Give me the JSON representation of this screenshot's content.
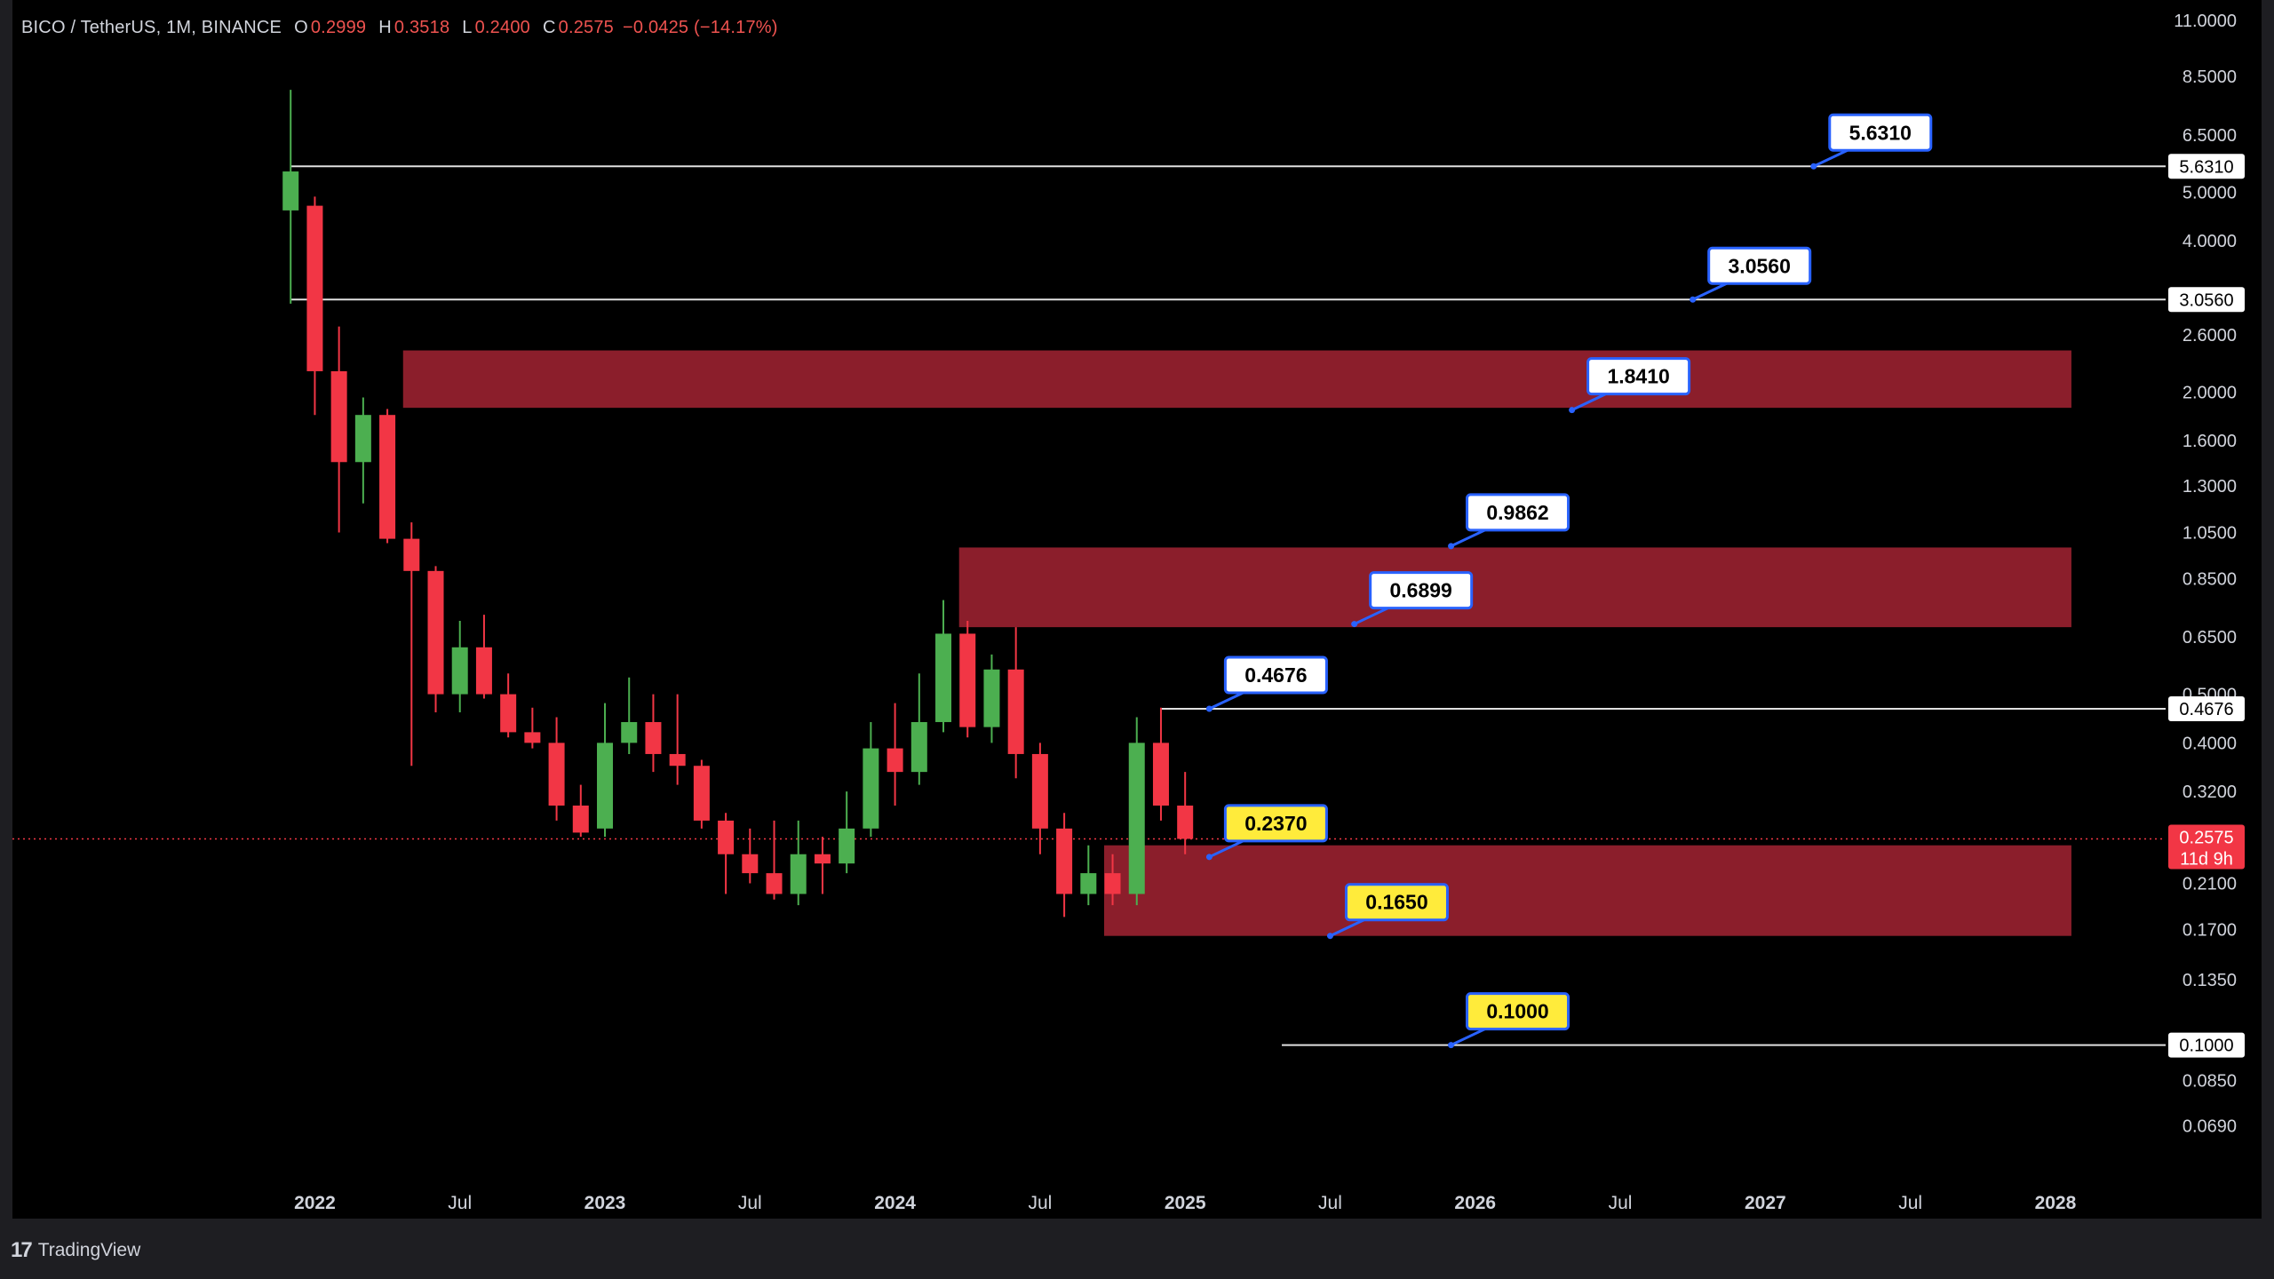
{
  "header": {
    "title": "BICO / TetherUS, 1M, BINANCE",
    "open_key": "O",
    "open": "0.2999",
    "high_key": "H",
    "high": "0.3518",
    "low_key": "L",
    "low": "0.2400",
    "close_key": "C",
    "close": "0.2575",
    "change": "−0.0425 (−14.17%)"
  },
  "footer": {
    "logo_glyph": "17",
    "brand": "TradingView"
  },
  "colors": {
    "up": "#4caf50",
    "down": "#f23645",
    "zone": "#8b1e2b",
    "axis_text": "#d1d4dc",
    "label_yellow": "#ffeb3b",
    "pointer": "#2962ff",
    "price_tag": "#f23645"
  },
  "chart_data": {
    "type": "candlestick",
    "symbol": "BICO / TetherUS",
    "interval": "1M",
    "exchange": "BINANCE",
    "y_scale": "log",
    "ylim": [
      0.06,
      11.5
    ],
    "xlim": [
      "2021-11",
      "2028-06"
    ],
    "y_ticks": [
      "11.0000",
      "8.5000",
      "6.5000",
      "5.0000",
      "4.0000",
      "2.6000",
      "2.0000",
      "1.6000",
      "1.3000",
      "1.0500",
      "0.8500",
      "0.6500",
      "0.5000",
      "0.4000",
      "0.3200",
      "0.2100",
      "0.1700",
      "0.1350",
      "0.0850",
      "0.0690"
    ],
    "x_ticks": [
      {
        "date": "2022-01",
        "label": "2022",
        "major": true
      },
      {
        "date": "2022-07",
        "label": "Jul",
        "major": false
      },
      {
        "date": "2023-01",
        "label": "2023",
        "major": true
      },
      {
        "date": "2023-07",
        "label": "Jul",
        "major": false
      },
      {
        "date": "2024-01",
        "label": "2024",
        "major": true
      },
      {
        "date": "2024-07",
        "label": "Jul",
        "major": false
      },
      {
        "date": "2025-01",
        "label": "2025",
        "major": true
      },
      {
        "date": "2025-07",
        "label": "Jul",
        "major": false
      },
      {
        "date": "2026-01",
        "label": "2026",
        "major": true
      },
      {
        "date": "2026-07",
        "label": "Jul",
        "major": false
      },
      {
        "date": "2027-01",
        "label": "2027",
        "major": true
      },
      {
        "date": "2027-07",
        "label": "Jul",
        "major": false
      },
      {
        "date": "2028-01",
        "label": "2028",
        "major": true
      }
    ],
    "candles": [
      {
        "t": "2021-12",
        "o": 4.6,
        "h": 8.0,
        "l": 3.0,
        "c": 5.5
      },
      {
        "t": "2022-01",
        "o": 4.7,
        "h": 4.9,
        "l": 1.8,
        "c": 2.2
      },
      {
        "t": "2022-02",
        "o": 2.2,
        "h": 2.7,
        "l": 1.05,
        "c": 1.45
      },
      {
        "t": "2022-03",
        "o": 1.45,
        "h": 1.95,
        "l": 1.2,
        "c": 1.8
      },
      {
        "t": "2022-04",
        "o": 1.8,
        "h": 1.85,
        "l": 1.0,
        "c": 1.02
      },
      {
        "t": "2022-05",
        "o": 1.02,
        "h": 1.1,
        "l": 0.36,
        "c": 0.88
      },
      {
        "t": "2022-06",
        "o": 0.88,
        "h": 0.9,
        "l": 0.46,
        "c": 0.5
      },
      {
        "t": "2022-07",
        "o": 0.5,
        "h": 0.7,
        "l": 0.46,
        "c": 0.62
      },
      {
        "t": "2022-08",
        "o": 0.62,
        "h": 0.72,
        "l": 0.49,
        "c": 0.5
      },
      {
        "t": "2022-09",
        "o": 0.5,
        "h": 0.55,
        "l": 0.41,
        "c": 0.42
      },
      {
        "t": "2022-10",
        "o": 0.42,
        "h": 0.47,
        "l": 0.39,
        "c": 0.4
      },
      {
        "t": "2022-11",
        "o": 0.4,
        "h": 0.45,
        "l": 0.28,
        "c": 0.3
      },
      {
        "t": "2022-12",
        "o": 0.3,
        "h": 0.33,
        "l": 0.26,
        "c": 0.265
      },
      {
        "t": "2023-01",
        "o": 0.27,
        "h": 0.48,
        "l": 0.26,
        "c": 0.4
      },
      {
        "t": "2023-02",
        "o": 0.4,
        "h": 0.54,
        "l": 0.38,
        "c": 0.44
      },
      {
        "t": "2023-03",
        "o": 0.44,
        "h": 0.5,
        "l": 0.35,
        "c": 0.38
      },
      {
        "t": "2023-04",
        "o": 0.38,
        "h": 0.5,
        "l": 0.33,
        "c": 0.36
      },
      {
        "t": "2023-05",
        "o": 0.36,
        "h": 0.37,
        "l": 0.27,
        "c": 0.28
      },
      {
        "t": "2023-06",
        "o": 0.28,
        "h": 0.29,
        "l": 0.2,
        "c": 0.24
      },
      {
        "t": "2023-07",
        "o": 0.24,
        "h": 0.27,
        "l": 0.21,
        "c": 0.22
      },
      {
        "t": "2023-08",
        "o": 0.22,
        "h": 0.28,
        "l": 0.195,
        "c": 0.2
      },
      {
        "t": "2023-09",
        "o": 0.2,
        "h": 0.28,
        "l": 0.19,
        "c": 0.24
      },
      {
        "t": "2023-10",
        "o": 0.24,
        "h": 0.26,
        "l": 0.2,
        "c": 0.23
      },
      {
        "t": "2023-11",
        "o": 0.23,
        "h": 0.32,
        "l": 0.22,
        "c": 0.27
      },
      {
        "t": "2023-12",
        "o": 0.27,
        "h": 0.44,
        "l": 0.26,
        "c": 0.39
      },
      {
        "t": "2024-01",
        "o": 0.39,
        "h": 0.48,
        "l": 0.3,
        "c": 0.35
      },
      {
        "t": "2024-02",
        "o": 0.35,
        "h": 0.55,
        "l": 0.33,
        "c": 0.44
      },
      {
        "t": "2024-03",
        "o": 0.44,
        "h": 0.77,
        "l": 0.42,
        "c": 0.66
      },
      {
        "t": "2024-04",
        "o": 0.66,
        "h": 0.7,
        "l": 0.41,
        "c": 0.43
      },
      {
        "t": "2024-05",
        "o": 0.43,
        "h": 0.6,
        "l": 0.4,
        "c": 0.56
      },
      {
        "t": "2024-06",
        "o": 0.56,
        "h": 0.68,
        "l": 0.34,
        "c": 0.38
      },
      {
        "t": "2024-07",
        "o": 0.38,
        "h": 0.4,
        "l": 0.24,
        "c": 0.27
      },
      {
        "t": "2024-08",
        "o": 0.27,
        "h": 0.29,
        "l": 0.18,
        "c": 0.2
      },
      {
        "t": "2024-09",
        "o": 0.2,
        "h": 0.25,
        "l": 0.19,
        "c": 0.22
      },
      {
        "t": "2024-10",
        "o": 0.22,
        "h": 0.24,
        "l": 0.19,
        "c": 0.2
      },
      {
        "t": "2024-11",
        "o": 0.2,
        "h": 0.45,
        "l": 0.19,
        "c": 0.4
      },
      {
        "t": "2024-12",
        "o": 0.4,
        "h": 0.47,
        "l": 0.28,
        "c": 0.3
      },
      {
        "t": "2025-01",
        "o": 0.3,
        "h": 0.35,
        "l": 0.24,
        "c": 0.2575
      }
    ],
    "horizontal_lines": [
      {
        "price": 5.631,
        "from": "2021-12",
        "tag": "5.6310"
      },
      {
        "price": 3.056,
        "from": "2021-12",
        "tag": "3.0560"
      },
      {
        "price": 0.4676,
        "from": "2024-12",
        "tag": "0.4676"
      },
      {
        "price": 0.1,
        "from": "2025-05",
        "tag": "0.1000"
      }
    ],
    "zones": [
      {
        "from": "2022-05",
        "to": "2028-01",
        "low": 1.86,
        "high": 2.42
      },
      {
        "from": "2024-04",
        "to": "2028-01",
        "low": 0.68,
        "high": 0.98
      },
      {
        "from": "2024-10",
        "to": "2028-01",
        "low": 0.165,
        "high": 0.25
      }
    ],
    "callouts": [
      {
        "text": "5.6310",
        "price": 5.631,
        "at": "2027-03",
        "style": "white"
      },
      {
        "text": "3.0560",
        "price": 3.056,
        "at": "2026-10",
        "style": "white"
      },
      {
        "text": "1.8410",
        "price": 1.841,
        "at": "2026-05",
        "style": "white"
      },
      {
        "text": "0.9862",
        "price": 0.9862,
        "at": "2025-12",
        "style": "white"
      },
      {
        "text": "0.6899",
        "price": 0.6899,
        "at": "2025-08",
        "style": "white"
      },
      {
        "text": "0.4676",
        "price": 0.4676,
        "at": "2025-02",
        "style": "white"
      },
      {
        "text": "0.2370",
        "price": 0.237,
        "at": "2025-02",
        "style": "yellow"
      },
      {
        "text": "0.1650",
        "price": 0.165,
        "at": "2025-07",
        "style": "yellow"
      },
      {
        "text": "0.1000",
        "price": 0.1,
        "at": "2025-12",
        "style": "yellow"
      }
    ],
    "current_price": {
      "price": 0.2575,
      "text": "0.2575",
      "countdown": "11d 9h"
    }
  }
}
